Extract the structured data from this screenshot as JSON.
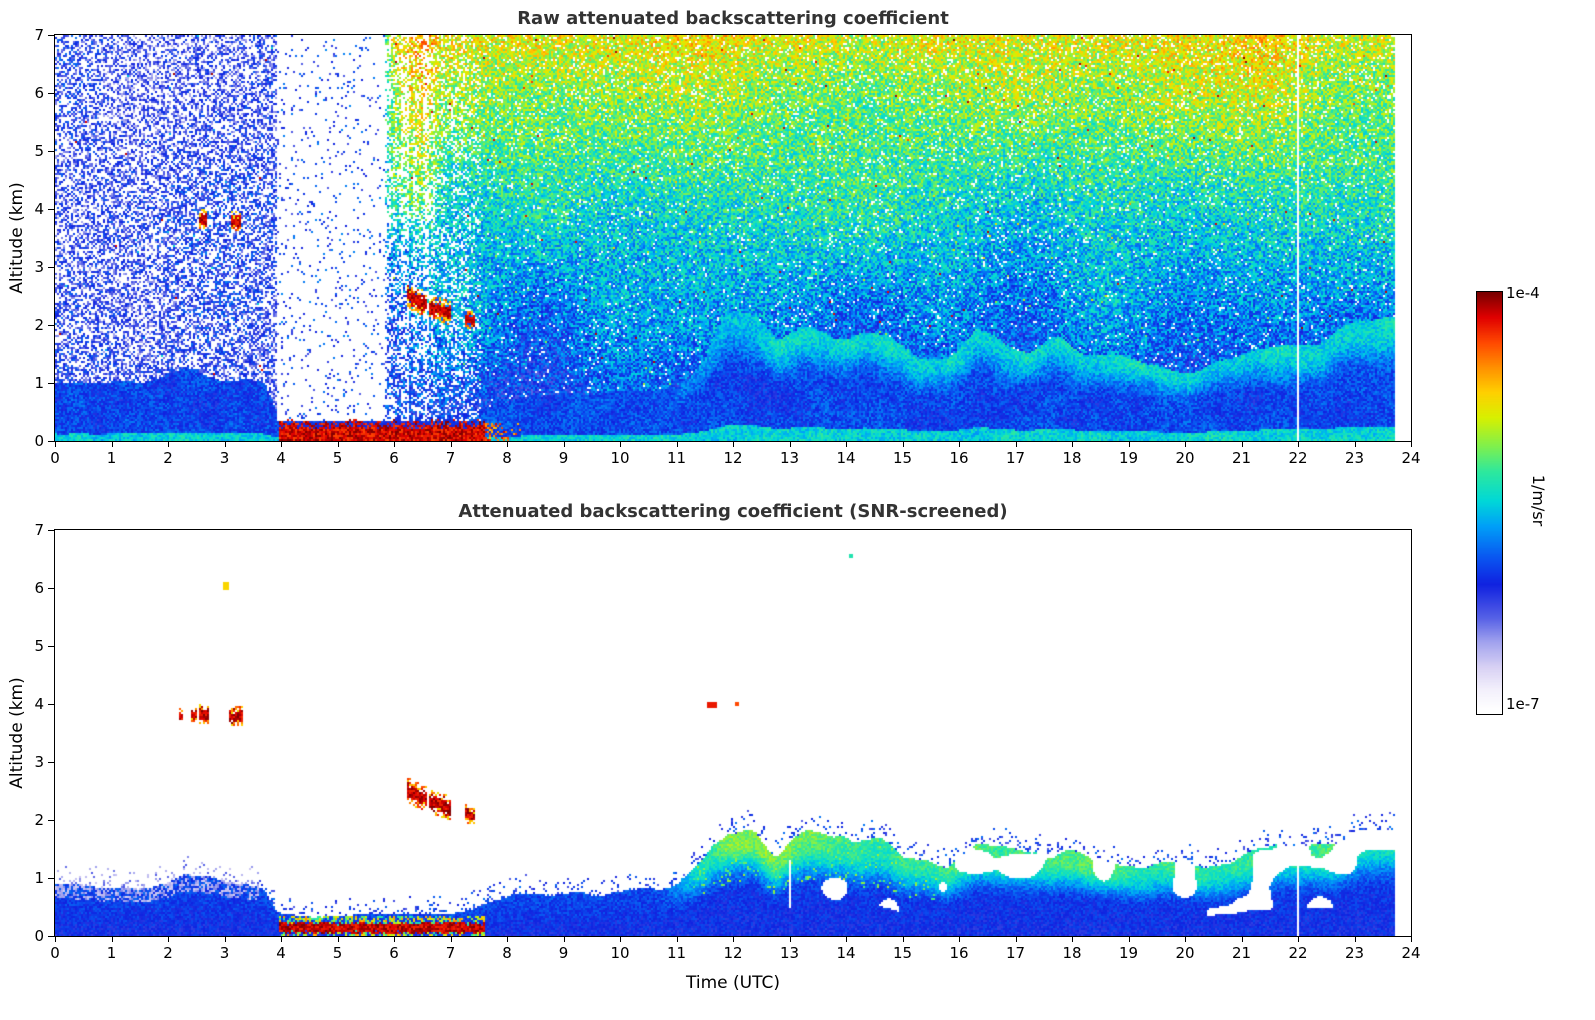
{
  "page": {
    "background": "#ffffff",
    "text_color": "#000000",
    "title_color": "#333333"
  },
  "colorbar": {
    "max_label": "1e-4",
    "min_label": "1e-7",
    "units_label": "1/m/sr"
  },
  "colormap": {
    "stops": [
      [
        0.0,
        "#ffffff"
      ],
      [
        0.05,
        "#f2effb"
      ],
      [
        0.1,
        "#d9d2f4"
      ],
      [
        0.16,
        "#a3a4ee"
      ],
      [
        0.22,
        "#5560e6"
      ],
      [
        0.3,
        "#1022e0"
      ],
      [
        0.36,
        "#0a52f0"
      ],
      [
        0.44,
        "#00a0f8"
      ],
      [
        0.5,
        "#00d8d8"
      ],
      [
        0.57,
        "#2ee89e"
      ],
      [
        0.63,
        "#7ef04e"
      ],
      [
        0.7,
        "#d8f000"
      ],
      [
        0.76,
        "#ffd000"
      ],
      [
        0.82,
        "#ff9000"
      ],
      [
        0.88,
        "#ff4800"
      ],
      [
        0.94,
        "#e00000"
      ],
      [
        1.0,
        "#780000"
      ]
    ]
  },
  "chart_data": [
    {
      "type": "heatmap",
      "kind": "raw",
      "title": "Raw attenuated backscattering coefficient",
      "xlabel": "",
      "ylabel": "Altitude (km)",
      "xlim": [
        0,
        24
      ],
      "ylim": [
        0,
        7
      ],
      "xticks": [
        0,
        1,
        2,
        3,
        4,
        5,
        6,
        7,
        8,
        9,
        10,
        11,
        12,
        13,
        14,
        15,
        16,
        17,
        18,
        19,
        20,
        21,
        22,
        23,
        24
      ],
      "yticks": [
        0,
        1,
        2,
        3,
        4,
        5,
        6,
        7
      ],
      "value_range_labels": [
        "1e-7",
        "1e-4"
      ],
      "value_units": "1/m/sr",
      "data_end_utc": 23.7,
      "gaps_utc": [
        22.0
      ],
      "fog_layer": {
        "t0": 3.95,
        "t1": 7.6,
        "z_top": 0.24
      },
      "attenuation_gap": {
        "t0": 3.92,
        "t1": 5.85,
        "z_min": 0.35
      },
      "partial_attenuation": {
        "t0": 5.85,
        "t1": 7.55
      },
      "clouds": [
        {
          "t0": 2.55,
          "t1": 2.7,
          "z0": 3.82,
          "z1": 3.82,
          "dz": 0.1
        },
        {
          "t0": 3.1,
          "t1": 3.28,
          "z0": 3.78,
          "z1": 3.78,
          "dz": 0.1
        },
        {
          "t0": 6.22,
          "t1": 6.6,
          "z0": 2.52,
          "z1": 2.34,
          "dz": 0.13
        },
        {
          "t0": 6.62,
          "t1": 7.02,
          "z0": 2.32,
          "z1": 2.2,
          "dz": 0.12
        },
        {
          "t0": 7.25,
          "t1": 7.42,
          "z0": 2.12,
          "z1": 2.06,
          "dz": 0.09
        }
      ],
      "boundary_layer": [
        [
          0,
          1.05
        ],
        [
          0.8,
          0.95
        ],
        [
          1.6,
          0.95
        ],
        [
          2.3,
          1.15
        ],
        [
          3,
          1.05
        ],
        [
          3.7,
          0.9
        ],
        [
          3.95,
          0.45
        ],
        [
          4.3,
          0.35
        ],
        [
          5,
          0.35
        ],
        [
          6,
          0.4
        ],
        [
          7,
          0.45
        ],
        [
          7.6,
          0.55
        ],
        [
          8.2,
          0.75
        ],
        [
          9,
          0.8
        ],
        [
          10,
          0.85
        ],
        [
          11,
          0.95
        ],
        [
          11.5,
          1.35
        ],
        [
          11.9,
          2.05
        ],
        [
          12.4,
          1.95
        ],
        [
          12.8,
          1.55
        ],
        [
          13.3,
          1.85
        ],
        [
          13.8,
          1.75
        ],
        [
          14.3,
          1.95
        ],
        [
          14.8,
          1.8
        ],
        [
          15.3,
          1.45
        ],
        [
          15.8,
          1.35
        ],
        [
          16.3,
          1.75
        ],
        [
          16.8,
          1.6
        ],
        [
          17.3,
          1.45
        ],
        [
          17.8,
          1.65
        ],
        [
          18.3,
          1.55
        ],
        [
          18.8,
          1.45
        ],
        [
          19.3,
          1.35
        ],
        [
          19.8,
          1.3
        ],
        [
          20.3,
          1.25
        ],
        [
          20.8,
          1.35
        ],
        [
          21.3,
          1.55
        ],
        [
          21.8,
          1.75
        ],
        [
          22.3,
          1.7
        ],
        [
          22.8,
          1.85
        ],
        [
          23.3,
          1.9
        ],
        [
          23.7,
          2.0
        ]
      ]
    },
    {
      "type": "heatmap",
      "kind": "screened",
      "title": "Attenuated backscattering coefficient (SNR-screened)",
      "xlabel": "Time (UTC)",
      "ylabel": "Altitude (km)",
      "xlim": [
        0,
        24
      ],
      "ylim": [
        0,
        7
      ],
      "xticks": [
        0,
        1,
        2,
        3,
        4,
        5,
        6,
        7,
        8,
        9,
        10,
        11,
        12,
        13,
        14,
        15,
        16,
        17,
        18,
        19,
        20,
        21,
        22,
        23,
        24
      ],
      "yticks": [
        0,
        1,
        2,
        3,
        4,
        5,
        6,
        7
      ],
      "value_range_labels": [
        "1e-7",
        "1e-4"
      ],
      "value_units": "1/m/sr",
      "data_end_utc": 23.7,
      "gaps_utc": [
        22.0
      ],
      "fog_layer": {
        "t0": 3.95,
        "t1": 7.6,
        "z_top": 0.26
      },
      "clouds": [
        {
          "t0": 2.18,
          "t1": 2.26,
          "z0": 3.8,
          "z1": 3.8,
          "dz": 0.07
        },
        {
          "t0": 2.42,
          "t1": 2.5,
          "z0": 3.82,
          "z1": 3.82,
          "dz": 0.07
        },
        {
          "t0": 2.55,
          "t1": 2.72,
          "z0": 3.82,
          "z1": 3.82,
          "dz": 0.1
        },
        {
          "t0": 3.08,
          "t1": 3.32,
          "z0": 3.78,
          "z1": 3.78,
          "dz": 0.1
        },
        {
          "t0": 6.22,
          "t1": 6.6,
          "z0": 2.52,
          "z1": 2.34,
          "dz": 0.13
        },
        {
          "t0": 6.62,
          "t1": 7.02,
          "z0": 2.32,
          "z1": 2.2,
          "dz": 0.12
        },
        {
          "t0": 7.25,
          "t1": 7.42,
          "z0": 2.12,
          "z1": 2.06,
          "dz": 0.09
        }
      ],
      "specks": [
        {
          "t": 3.02,
          "z": 6.03,
          "v": 0.75,
          "dt": 0.06,
          "dz": 0.07
        },
        {
          "t": 11.62,
          "z": 3.98,
          "v": 0.92,
          "dt": 0.08,
          "dz": 0.04
        },
        {
          "t": 12.07,
          "z": 4.0,
          "v": 0.88,
          "dt": 0.05,
          "dz": 0.04
        },
        {
          "t": 14.1,
          "z": 6.55,
          "v": 0.55,
          "dt": 0.03,
          "dz": 0.03
        }
      ],
      "boundary_layer": [
        [
          0,
          1.05
        ],
        [
          0.8,
          0.95
        ],
        [
          1.6,
          0.95
        ],
        [
          2.3,
          1.15
        ],
        [
          3,
          1.05
        ],
        [
          3.7,
          0.9
        ],
        [
          3.95,
          0.45
        ],
        [
          4.3,
          0.35
        ],
        [
          5,
          0.35
        ],
        [
          6,
          0.4
        ],
        [
          7,
          0.45
        ],
        [
          7.6,
          0.55
        ],
        [
          8.2,
          0.75
        ],
        [
          9,
          0.8
        ],
        [
          10,
          0.85
        ],
        [
          11,
          0.95
        ],
        [
          11.5,
          1.35
        ],
        [
          11.9,
          2.05
        ],
        [
          12.4,
          1.95
        ],
        [
          12.8,
          1.55
        ],
        [
          13.3,
          1.85
        ],
        [
          13.8,
          1.75
        ],
        [
          14.3,
          1.95
        ],
        [
          14.8,
          1.8
        ],
        [
          15.3,
          1.45
        ],
        [
          15.8,
          1.35
        ],
        [
          16.3,
          1.75
        ],
        [
          16.8,
          1.6
        ],
        [
          17.3,
          1.45
        ],
        [
          17.8,
          1.65
        ],
        [
          18.3,
          1.55
        ],
        [
          18.8,
          1.45
        ],
        [
          19.3,
          1.35
        ],
        [
          19.8,
          1.3
        ],
        [
          20.3,
          1.25
        ],
        [
          20.8,
          1.35
        ],
        [
          21.3,
          1.55
        ],
        [
          21.8,
          1.75
        ],
        [
          22.3,
          1.7
        ],
        [
          22.8,
          1.85
        ],
        [
          23.3,
          1.9
        ],
        [
          23.7,
          2.0
        ]
      ]
    }
  ]
}
